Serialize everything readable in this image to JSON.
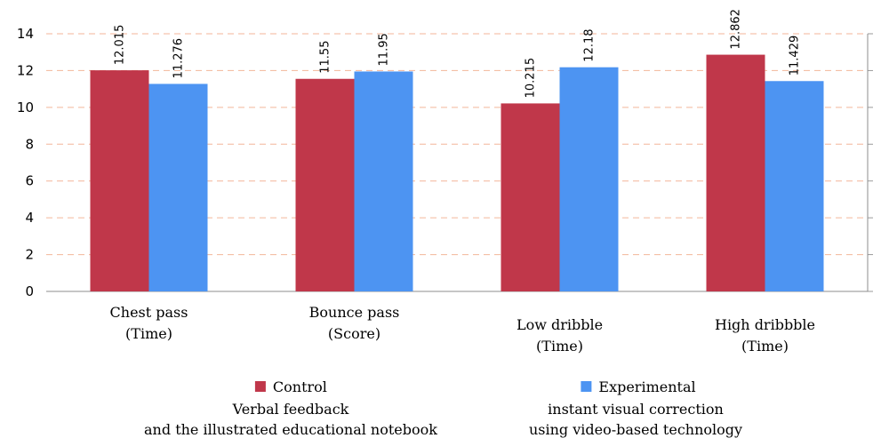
{
  "chart_data": {
    "type": "bar",
    "categories": [
      [
        "Chest pass",
        "(Time)"
      ],
      [
        "Bounce pass",
        "(Score)"
      ],
      [
        "Low dribble",
        "(Time)"
      ],
      [
        "High dribbble",
        "(Time)"
      ]
    ],
    "series": [
      {
        "name": "Control",
        "subtitle": [
          "Verbal feedback",
          "and the illustrated educational notebook"
        ],
        "color": "#c0374a",
        "values": [
          12.015,
          11.55,
          10.215,
          12.862
        ],
        "labels": [
          "12.015",
          "11.55",
          "10.215",
          "12.862"
        ]
      },
      {
        "name": "Experimental",
        "subtitle": [
          "instant visual correction",
          "using video-based technology"
        ],
        "color": "#4d94f2",
        "values": [
          11.276,
          11.95,
          12.18,
          11.429
        ],
        "labels": [
          "11.276",
          "11.95",
          "12.18",
          "11.429"
        ]
      }
    ],
    "ylim": [
      0,
      14
    ],
    "yticks": [
      "0",
      "2",
      "4",
      "6",
      "8",
      "10",
      "12",
      "14"
    ],
    "grid": true,
    "gridline_color": "#f3b69a",
    "legend_position": "bottom"
  }
}
